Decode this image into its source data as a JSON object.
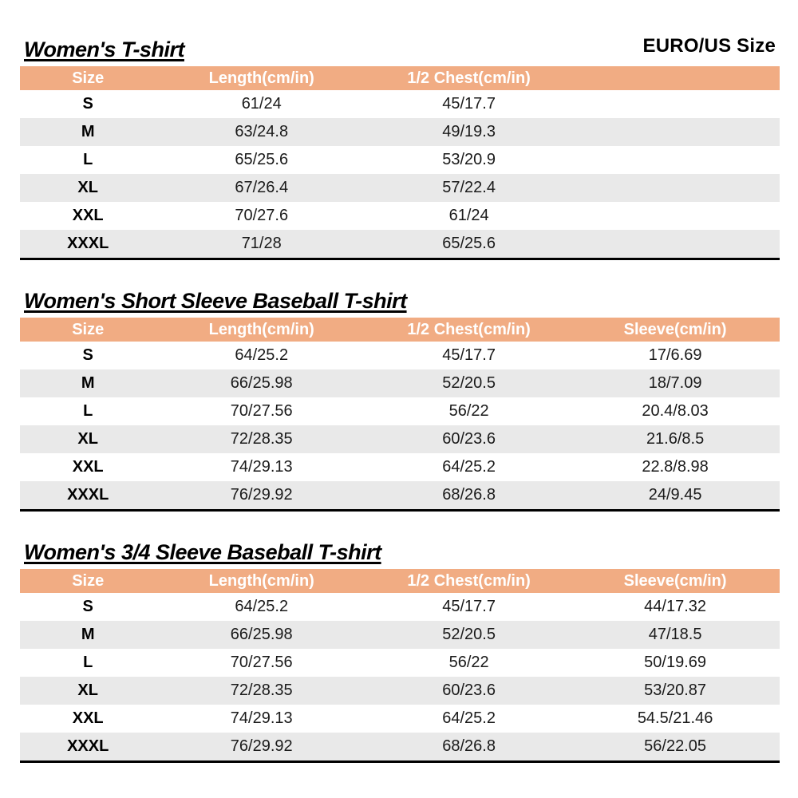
{
  "header": {
    "size_standard_label": "EURO/US Size"
  },
  "colors": {
    "table_header_bg": "#F1AC83",
    "table_header_text": "#FFFFFF",
    "alt_row_bg": "#E9E9E9",
    "bottom_border": "#000000"
  },
  "tables": [
    {
      "title": "Women's T-shirt",
      "columns": [
        "Size",
        "Length(cm/in)",
        "1/2 Chest(cm/in)",
        ""
      ],
      "rows": [
        [
          "S",
          "61/24",
          "45/17.7",
          ""
        ],
        [
          "M",
          "63/24.8",
          "49/19.3",
          ""
        ],
        [
          "L",
          "65/25.6",
          "53/20.9",
          ""
        ],
        [
          "XL",
          "67/26.4",
          "57/22.4",
          ""
        ],
        [
          "XXL",
          "70/27.6",
          "61/24",
          ""
        ],
        [
          "XXXL",
          "71/28",
          "65/25.6",
          ""
        ]
      ]
    },
    {
      "title": "Women's Short Sleeve Baseball T-shirt",
      "columns": [
        "Size",
        "Length(cm/in)",
        "1/2 Chest(cm/in)",
        "Sleeve(cm/in)"
      ],
      "rows": [
        [
          "S",
          "64/25.2",
          "45/17.7",
          "17/6.69"
        ],
        [
          "M",
          "66/25.98",
          "52/20.5",
          "18/7.09"
        ],
        [
          "L",
          "70/27.56",
          "56/22",
          "20.4/8.03"
        ],
        [
          "XL",
          "72/28.35",
          "60/23.6",
          "21.6/8.5"
        ],
        [
          "XXL",
          "74/29.13",
          "64/25.2",
          "22.8/8.98"
        ],
        [
          "XXXL",
          "76/29.92",
          "68/26.8",
          "24/9.45"
        ]
      ]
    },
    {
      "title": "Women's 3/4 Sleeve Baseball T-shirt",
      "columns": [
        "Size",
        "Length(cm/in)",
        "1/2 Chest(cm/in)",
        "Sleeve(cm/in)"
      ],
      "rows": [
        [
          "S",
          "64/25.2",
          "45/17.7",
          "44/17.32"
        ],
        [
          "M",
          "66/25.98",
          "52/20.5",
          "47/18.5"
        ],
        [
          "L",
          "70/27.56",
          "56/22",
          "50/19.69"
        ],
        [
          "XL",
          "72/28.35",
          "60/23.6",
          "53/20.87"
        ],
        [
          "XXL",
          "74/29.13",
          "64/25.2",
          "54.5/21.46"
        ],
        [
          "XXXL",
          "76/29.92",
          "68/26.8",
          "56/22.05"
        ]
      ]
    }
  ]
}
